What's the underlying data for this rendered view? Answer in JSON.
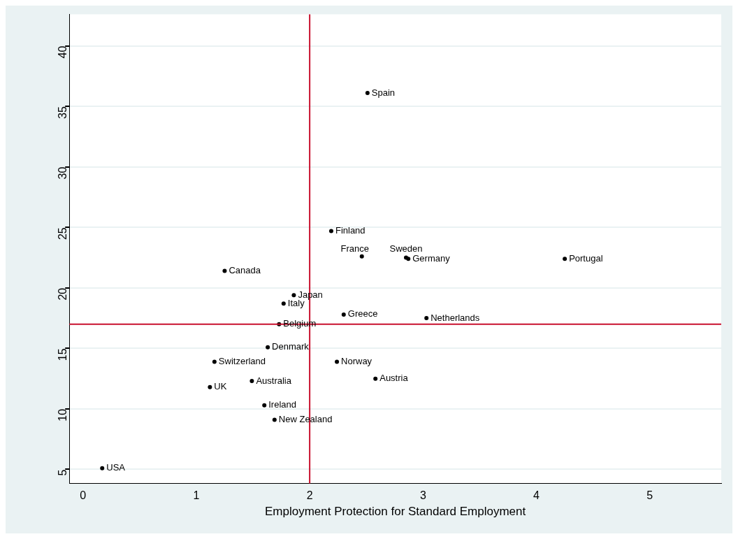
{
  "chart_data": {
    "type": "scatter",
    "xlabel": "Employment Protection for Standard Employment",
    "x": [
      2.51,
      2.19,
      2.46,
      2.85,
      2.87,
      4.25,
      1.25,
      1.86,
      1.77,
      1.73,
      2.3,
      3.03,
      1.63,
      1.16,
      2.24,
      1.49,
      2.58,
      1.12,
      1.6,
      1.69,
      0.17
    ],
    "series": [
      {
        "color": "#000000",
        "values": [
          36.1,
          24.7,
          22.6,
          22.5,
          22.4,
          22.4,
          21.4,
          19.4,
          18.7,
          17.0,
          17.8,
          17.5,
          15.1,
          13.9,
          13.9,
          12.3,
          12.5,
          11.8,
          10.3,
          9.1,
          5.1
        ]
      }
    ],
    "annotations": [
      {
        "text": "Spain",
        "x": 2.51,
        "y": 36.1
      },
      {
        "text": "Finland",
        "x": 2.19,
        "y": 24.7
      },
      {
        "text": "France",
        "x": 2.46,
        "y": 22.6
      },
      {
        "text": "Sweden",
        "x": 2.85,
        "y": 22.5
      },
      {
        "text": "Germany",
        "x": 2.87,
        "y": 22.4
      },
      {
        "text": "Portugal",
        "x": 4.25,
        "y": 22.4
      },
      {
        "text": "Canada",
        "x": 1.25,
        "y": 21.4
      },
      {
        "text": "Japan",
        "x": 1.86,
        "y": 19.4
      },
      {
        "text": "Italy",
        "x": 1.77,
        "y": 18.7
      },
      {
        "text": "Belgium",
        "x": 1.73,
        "y": 17.0
      },
      {
        "text": "Greece",
        "x": 2.3,
        "y": 17.8
      },
      {
        "text": "Netherlands",
        "x": 3.03,
        "y": 17.5
      },
      {
        "text": "Denmark",
        "x": 1.63,
        "y": 15.1
      },
      {
        "text": "Switzerland",
        "x": 1.16,
        "y": 13.9
      },
      {
        "text": "Norway",
        "x": 2.24,
        "y": 13.9
      },
      {
        "text": "Australia",
        "x": 1.49,
        "y": 12.3
      },
      {
        "text": "Austria",
        "x": 2.58,
        "y": 12.5
      },
      {
        "text": "UK",
        "x": 1.12,
        "y": 11.8
      },
      {
        "text": "Ireland",
        "x": 1.6,
        "y": 10.3
      },
      {
        "text": "New Zealand",
        "x": 1.69,
        "y": 9.1
      },
      {
        "text": "USA",
        "x": 0.17,
        "y": 5.1
      }
    ],
    "ref_lines": [
      {
        "axis": "x",
        "value": 2,
        "color": "#c8102e"
      },
      {
        "axis": "y",
        "value": 17,
        "color": "#c8102e"
      }
    ],
    "xlim": [
      -0.12,
      5.63
    ],
    "xticks": [
      0,
      1,
      2,
      3,
      4,
      5
    ],
    "ylim": [
      3.85,
      42.6
    ],
    "yticks": [
      5,
      10,
      15,
      20,
      25,
      30,
      35,
      40
    ],
    "grid": "y",
    "marker": "circle",
    "legend": false
  }
}
